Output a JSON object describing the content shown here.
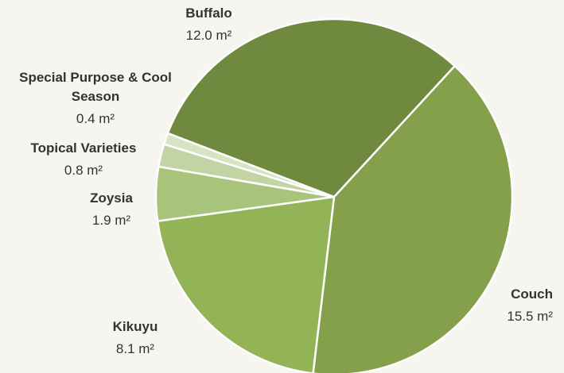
{
  "chart_data": {
    "type": "pie",
    "categories": [
      "Couch",
      "Kikuyu",
      "Zoysia",
      "Topical Varieties",
      "Special Purpose & Cool Season",
      "Buffalo"
    ],
    "values": [
      15.5,
      8.1,
      1.9,
      0.8,
      0.4,
      12.0
    ],
    "value_labels": [
      "15.5 m²",
      "8.1 m²",
      "1.9 m²",
      "0.8 m²",
      "0.4 m²",
      "12.0 m²"
    ],
    "colors": [
      "#84a04a",
      "#93b357",
      "#a8c47a",
      "#c2d4a4",
      "#d8e3c4",
      "#6f8a3e"
    ]
  }
}
